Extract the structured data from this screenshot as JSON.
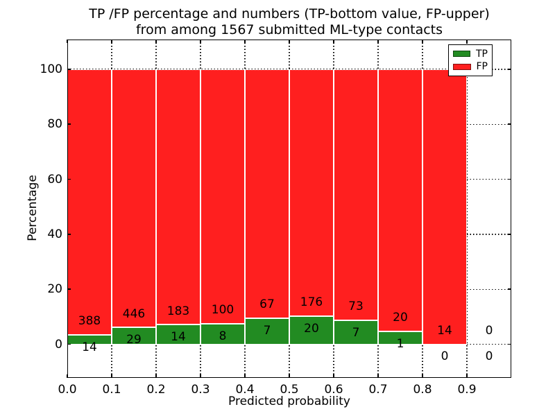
{
  "figure": {
    "title_line1": "TP /FP percentage and numbers (TP-bottom value, FP-upper)",
    "title_line2": "from among 1567 submitted ML-type contacts",
    "xlabel": "Predicted probability",
    "ylabel": "Percentage"
  },
  "legend": {
    "position": "upper right",
    "entries": [
      {
        "label": "TP",
        "color": "#228b22"
      },
      {
        "label": "FP",
        "color": "#ff1f1f"
      }
    ]
  },
  "chart_data": {
    "type": "bar",
    "stacked": true,
    "normalization": "each bin scaled to 100% (TP bottom, FP upper); numeric labels are raw counts",
    "title": "TP /FP percentage and numbers (TP-bottom value, FP-upper) from among 1567 submitted ML-type contacts",
    "xlabel": "Predicted probability",
    "ylabel": "Percentage",
    "total_contacts": 1567,
    "bin_width": 0.1,
    "bin_starts": [
      0.0,
      0.1,
      0.2,
      0.3,
      0.4,
      0.5,
      0.6,
      0.7,
      0.8,
      0.9
    ],
    "categories": [
      "0.0-0.1",
      "0.1-0.2",
      "0.2-0.3",
      "0.3-0.4",
      "0.4-0.5",
      "0.5-0.6",
      "0.6-0.7",
      "0.7-0.8",
      "0.8-0.9",
      "0.9-1.0"
    ],
    "series": [
      {
        "name": "TP",
        "color": "#228b22",
        "counts": [
          14,
          29,
          14,
          8,
          7,
          20,
          7,
          1,
          0,
          0
        ]
      },
      {
        "name": "FP",
        "color": "#ff1f1f",
        "counts": [
          388,
          446,
          183,
          100,
          67,
          176,
          73,
          20,
          14,
          0
        ]
      }
    ],
    "tp_percent_of_bin": [
      3.5,
      6.1,
      7.1,
      7.4,
      9.5,
      10.2,
      8.8,
      4.8,
      0.0,
      null
    ],
    "xticks": [
      "0.0",
      "0.1",
      "0.2",
      "0.3",
      "0.4",
      "0.5",
      "0.6",
      "0.7",
      "0.8",
      "0.9"
    ],
    "xtick_values": [
      0.0,
      0.1,
      0.2,
      0.3,
      0.4,
      0.5,
      0.6,
      0.7,
      0.8,
      0.9
    ],
    "yticks": [
      0,
      20,
      40,
      60,
      80,
      100
    ],
    "xlim": [
      0.0,
      1.0
    ],
    "ylim": [
      -12.2,
      110.8
    ],
    "grid": "dotted",
    "legend_position": "upper right"
  }
}
